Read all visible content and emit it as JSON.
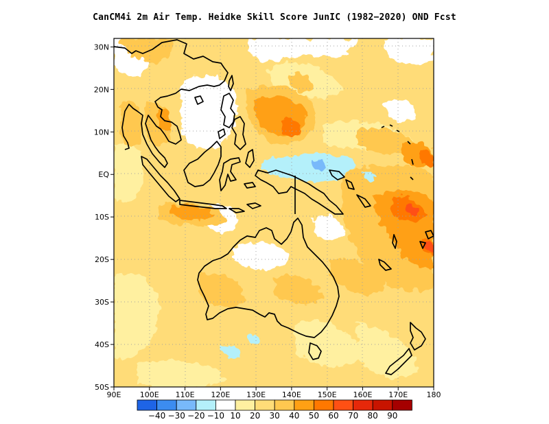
{
  "title": "CanCM4i  2m Air Temp. Heidke Skill Score JunIC (1982−2020) OND Fcst",
  "map": {
    "extent": {
      "lon": [
        90,
        180
      ],
      "lat": [
        -50,
        32
      ]
    },
    "lat_ticks": [
      {
        "v": 30,
        "label": "30N"
      },
      {
        "v": 20,
        "label": "20N"
      },
      {
        "v": 10,
        "label": "10N"
      },
      {
        "v": 0,
        "label": "EQ"
      },
      {
        "v": -10,
        "label": "10S"
      },
      {
        "v": -20,
        "label": "20S"
      },
      {
        "v": -30,
        "label": "30S"
      },
      {
        "v": -40,
        "label": "40S"
      },
      {
        "v": -50,
        "label": "50S"
      }
    ],
    "lon_ticks": [
      {
        "v": 90,
        "label": "90E"
      },
      {
        "v": 100,
        "label": "100E"
      },
      {
        "v": 110,
        "label": "110E"
      },
      {
        "v": 120,
        "label": "120E"
      },
      {
        "v": 130,
        "label": "130E"
      },
      {
        "v": 140,
        "label": "140E"
      },
      {
        "v": 150,
        "label": "150E"
      },
      {
        "v": 160,
        "label": "160E"
      },
      {
        "v": 170,
        "label": "170E"
      },
      {
        "v": 180,
        "label": "180"
      }
    ]
  },
  "colorbar": {
    "colors": [
      "#1e64e6",
      "#3c8cf0",
      "#78b9fa",
      "#b4f0fa",
      "#ffffff",
      "#fff0a0",
      "#ffdc78",
      "#ffc850",
      "#ffa014",
      "#ff7800",
      "#ff5014",
      "#e6280a",
      "#c81400",
      "#a50000"
    ],
    "labels": [
      "−40",
      "−30",
      "−20",
      "−10",
      "10",
      "20",
      "30",
      "40",
      "50",
      "60",
      "70",
      "80",
      "90"
    ]
  }
}
